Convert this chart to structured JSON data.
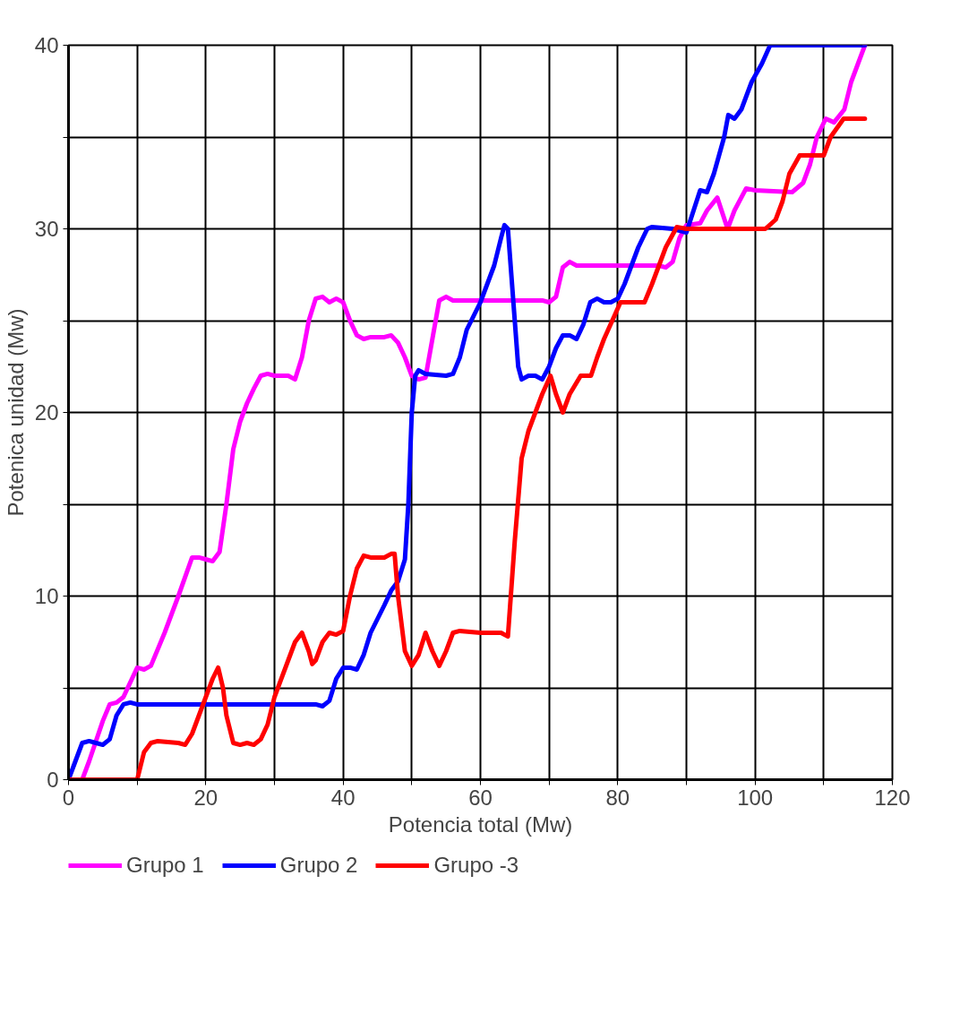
{
  "chart_data": {
    "type": "line",
    "xlabel": "Potencia total (Mw)",
    "ylabel": "Potenica unidad (Mw)",
    "xlim": [
      0,
      120
    ],
    "ylim": [
      0,
      40
    ],
    "xticks": [
      0,
      {
        "value": 10,
        "label": null
      },
      20,
      {
        "value": 30,
        "label": null
      },
      40,
      {
        "value": 50,
        "label": null
      },
      60,
      {
        "value": 70,
        "label": null
      },
      80,
      {
        "value": 90,
        "label": null
      },
      100,
      {
        "value": 110,
        "label": null
      },
      120
    ],
    "yticks": [
      0,
      {
        "value": 5,
        "label": null
      },
      10,
      {
        "value": 15,
        "label": null
      },
      20,
      {
        "value": 25,
        "label": null
      },
      30,
      {
        "value": 35,
        "label": null
      },
      40
    ],
    "grid": true,
    "legend": "bottom",
    "marker": "none",
    "line_style": "solid",
    "series": [
      {
        "name": "Grupo 1",
        "color": "#ff00ff",
        "x": [
          2,
          3,
          5,
          6,
          7,
          8,
          10,
          11,
          12,
          14,
          16,
          18,
          19,
          20,
          21,
          22,
          23,
          24,
          25,
          26,
          27,
          28,
          29,
          30,
          32,
          33,
          34,
          35,
          36,
          37,
          38,
          39,
          40,
          41,
          42,
          43,
          44,
          46,
          47,
          48,
          49,
          50,
          51,
          52,
          53,
          54,
          55,
          56,
          60,
          65,
          69,
          70,
          71,
          72,
          73,
          74,
          80,
          86,
          87,
          88,
          89,
          90,
          92,
          93,
          94.5,
          96,
          97,
          98.7,
          100,
          105.4,
          107,
          108,
          109,
          110.3,
          111.5,
          113,
          114,
          115,
          116
        ],
        "values": [
          0,
          1,
          3.2,
          4.1,
          4.2,
          4.5,
          6.1,
          6,
          6.2,
          8,
          10,
          12.1,
          12.1,
          12,
          11.9,
          12.4,
          15,
          18,
          19.5,
          20.5,
          21.3,
          22,
          22.1,
          22,
          22,
          21.8,
          23,
          25,
          26.2,
          26.3,
          26,
          26.2,
          26,
          25,
          24.2,
          24,
          24.1,
          24.1,
          24.2,
          23.8,
          23,
          22,
          21.8,
          21.9,
          24,
          26.1,
          26.3,
          26.1,
          26.1,
          26.1,
          26.1,
          26,
          26.3,
          27.9,
          28.2,
          28,
          28,
          28,
          27.9,
          28.2,
          29.5,
          30.2,
          30.3,
          31,
          31.7,
          30,
          31,
          32.2,
          32.1,
          32,
          32.5,
          33.5,
          35,
          36,
          35.8,
          36.5,
          38,
          39,
          40
        ]
      },
      {
        "name": "Grupo 2",
        "color": "#0000ff",
        "x": [
          0,
          1,
          2,
          3,
          4,
          5,
          6,
          7,
          8,
          9,
          10,
          20,
          30,
          36,
          37,
          38,
          39,
          40,
          41,
          42,
          43,
          44,
          46,
          47,
          48,
          49,
          49.5,
          50,
          50.5,
          51,
          52,
          55,
          56,
          57,
          58,
          60,
          62,
          63,
          63.5,
          64,
          65,
          65.5,
          66,
          67,
          68,
          69,
          70,
          71,
          72,
          73,
          74,
          75,
          76,
          77,
          78,
          79,
          80,
          81,
          83,
          84.3,
          85,
          88,
          90,
          92,
          93,
          94,
          95.5,
          96.1,
          97,
          98,
          99.5,
          101,
          102.2,
          116
        ],
        "values": [
          0,
          1,
          2,
          2.1,
          2,
          1.9,
          2.2,
          3.5,
          4.1,
          4.2,
          4.1,
          4.1,
          4.1,
          4.1,
          4,
          4.3,
          5.5,
          6.1,
          6.1,
          6,
          6.8,
          8,
          9.5,
          10.3,
          10.8,
          12,
          15,
          20,
          22,
          22.3,
          22.1,
          22,
          22.1,
          23,
          24.5,
          26,
          28,
          29.5,
          30.2,
          30,
          25,
          22.5,
          21.8,
          22,
          22,
          21.8,
          22.5,
          23.5,
          24.2,
          24.2,
          24,
          24.8,
          26,
          26.2,
          26,
          26,
          26.2,
          27,
          29,
          30,
          30.1,
          30,
          29.8,
          32.1,
          32,
          33,
          35,
          36.2,
          36,
          36.5,
          38,
          39,
          40,
          40
        ]
      },
      {
        "name": "Grupo -3",
        "color": "#ff0000",
        "x": [
          0,
          10,
          11,
          12,
          13,
          16,
          17,
          18,
          19,
          20,
          21,
          21.8,
          22.5,
          23,
          24,
          25,
          26,
          27,
          28,
          29,
          30,
          32,
          33,
          34,
          35,
          35.5,
          36,
          37,
          38,
          39,
          40,
          41,
          42,
          43,
          44,
          46,
          47,
          47.5,
          48,
          49,
          50,
          51,
          52,
          53,
          54,
          55,
          56,
          57,
          60,
          63,
          64,
          65,
          66,
          67,
          68,
          69,
          70.2,
          71,
          72,
          73,
          74.6,
          76.1,
          77,
          78,
          80.4,
          82,
          83.9,
          85,
          87,
          88.6,
          90,
          95,
          101.5,
          103,
          104,
          105,
          106.5,
          108,
          110,
          111,
          112.9,
          114,
          116
        ],
        "values": [
          0,
          0,
          1.5,
          2,
          2.1,
          2,
          1.9,
          2.5,
          3.5,
          4.5,
          5.5,
          6.1,
          5,
          3.5,
          2,
          1.9,
          2,
          1.9,
          2.2,
          3,
          4.5,
          6.5,
          7.5,
          8,
          7,
          6.3,
          6.5,
          7.5,
          8,
          7.9,
          8.1,
          10,
          11.5,
          12.2,
          12.1,
          12.1,
          12.3,
          12.3,
          10,
          7,
          6.2,
          6.8,
          8,
          7,
          6.2,
          7,
          8,
          8.1,
          8,
          8,
          7.8,
          13,
          17.5,
          19,
          20,
          21,
          22,
          21,
          20,
          21,
          22,
          22,
          23,
          24,
          26,
          26,
          26,
          27,
          29,
          30.1,
          30,
          30,
          30,
          30.5,
          31.5,
          33,
          34,
          34,
          34,
          35,
          36,
          36,
          36
        ]
      }
    ]
  }
}
